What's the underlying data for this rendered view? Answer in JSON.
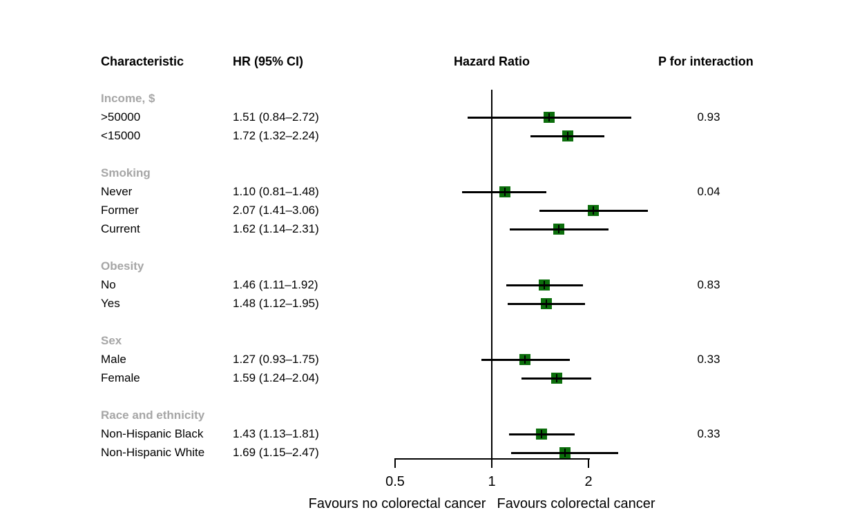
{
  "figure": {
    "headers": {
      "characteristic": "Characteristic",
      "hr_ci": "HR (95% CI)",
      "hazard_ratio": "Hazard Ratio",
      "p_for_interaction": "P for interaction"
    }
  },
  "chart_data": {
    "type": "forest",
    "title": "Hazard Ratio",
    "x_scale": "log2",
    "x_ticks": [
      0.5,
      1,
      2
    ],
    "x_tick_labels": [
      "0.5",
      "1",
      "2"
    ],
    "x_range": [
      0.5,
      2
    ],
    "reference_line": 1,
    "xlabel_left": "Favours no colorectal cancer",
    "xlabel_right": "Favours colorectal cancer",
    "columns": [
      "Characteristic",
      "HR (95% CI)",
      "Hazard Ratio",
      "P for interaction"
    ],
    "groups": [
      {
        "label": "Income, $",
        "p_for_interaction": "0.93",
        "items": [
          {
            "label": ">50000",
            "hr_text": "1.51 (0.84–2.72)",
            "hr": 1.51,
            "ci_low": 0.84,
            "ci_high": 2.72
          },
          {
            "label": "<15000",
            "hr_text": "1.72 (1.32–2.24)",
            "hr": 1.72,
            "ci_low": 1.32,
            "ci_high": 2.24
          }
        ]
      },
      {
        "label": "Smoking",
        "p_for_interaction": "0.04",
        "items": [
          {
            "label": "Never",
            "hr_text": "1.10 (0.81–1.48)",
            "hr": 1.1,
            "ci_low": 0.81,
            "ci_high": 1.48
          },
          {
            "label": "Former",
            "hr_text": "2.07 (1.41–3.06)",
            "hr": 2.07,
            "ci_low": 1.41,
            "ci_high": 3.06
          },
          {
            "label": "Current",
            "hr_text": "1.62 (1.14–2.31)",
            "hr": 1.62,
            "ci_low": 1.14,
            "ci_high": 2.31
          }
        ]
      },
      {
        "label": "Obesity",
        "p_for_interaction": "0.83",
        "items": [
          {
            "label": "No",
            "hr_text": "1.46 (1.11–1.92)",
            "hr": 1.46,
            "ci_low": 1.11,
            "ci_high": 1.92
          },
          {
            "label": "Yes",
            "hr_text": "1.48 (1.12–1.95)",
            "hr": 1.48,
            "ci_low": 1.12,
            "ci_high": 1.95
          }
        ]
      },
      {
        "label": "Sex",
        "p_for_interaction": "0.33",
        "items": [
          {
            "label": "Male",
            "hr_text": "1.27 (0.93–1.75)",
            "hr": 1.27,
            "ci_low": 0.93,
            "ci_high": 1.75
          },
          {
            "label": "Female",
            "hr_text": "1.59 (1.24–2.04)",
            "hr": 1.59,
            "ci_low": 1.24,
            "ci_high": 2.04
          }
        ]
      },
      {
        "label": "Race and ethnicity",
        "p_for_interaction": "0.33",
        "items": [
          {
            "label": "Non-Hispanic Black",
            "hr_text": "1.43 (1.13–1.81)",
            "hr": 1.43,
            "ci_low": 1.13,
            "ci_high": 1.81
          },
          {
            "label": "Non-Hispanic White",
            "hr_text": "1.69 (1.15–2.47)",
            "hr": 1.69,
            "ci_low": 1.15,
            "ci_high": 2.47
          }
        ]
      }
    ],
    "colors": {
      "marker": "#0c6e0c",
      "line": "#000000",
      "group_label": "#a6a6a6",
      "background": "#ffffff"
    }
  }
}
